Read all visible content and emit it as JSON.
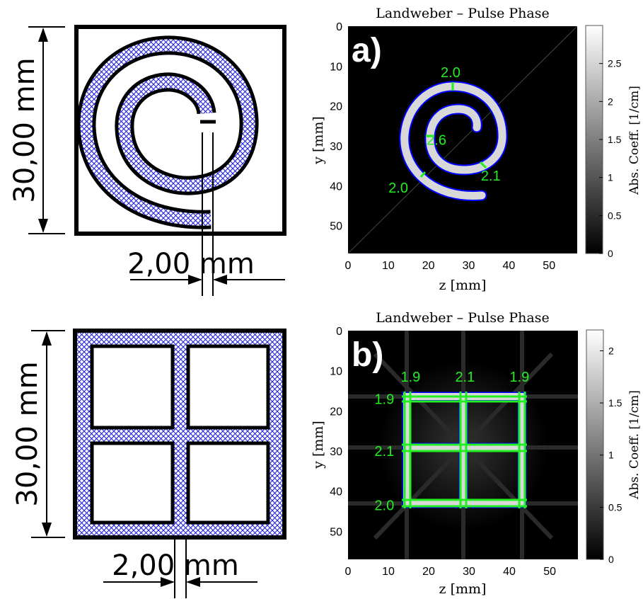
{
  "colors": {
    "hatch": "#2020dd",
    "outline": "#0000ff",
    "measure": "#22ee22",
    "panel_bg": "#000000"
  },
  "drawings": {
    "spiral": {
      "dimension_vertical": "30,00 mm",
      "dimension_gap": "2,00 mm"
    },
    "grid": {
      "dimension_vertical": "30,00 mm",
      "dimension_gap": "2,00 mm"
    }
  },
  "chart_data": [
    {
      "type": "heatmap",
      "title": "Landweber – Pulse Phase",
      "panel_label": "a)",
      "xlabel": "z [mm]",
      "ylabel": "y [mm]",
      "xlim": [
        0,
        57
      ],
      "ylim": [
        57,
        0
      ],
      "xticks": [
        "0",
        "10",
        "20",
        "30",
        "40",
        "50"
      ],
      "yticks": [
        "0",
        "10",
        "20",
        "30",
        "40",
        "50"
      ],
      "colorbar": {
        "label": "Abs. Coeff. [1/cm]",
        "min": 0,
        "max": 3.0,
        "ticks": [
          "0",
          "0.5",
          "1",
          "1.5",
          "2",
          "2.5"
        ]
      },
      "annotations": [
        {
          "text": "2.0",
          "z": 25.5,
          "y": 11.5
        },
        {
          "text": "2.6",
          "z": 22.0,
          "y": 28.5
        },
        {
          "text": "2.1",
          "z": 35.5,
          "y": 37.5
        },
        {
          "text": "2.0",
          "z": 12.5,
          "y": 40.5
        }
      ]
    },
    {
      "type": "heatmap",
      "title": "Landweber – Pulse Phase",
      "panel_label": "b)",
      "xlabel": "z [mm]",
      "ylabel": "y [mm]",
      "xlim": [
        0,
        57
      ],
      "ylim": [
        57,
        0
      ],
      "xticks": [
        "0",
        "10",
        "20",
        "30",
        "40",
        "50"
      ],
      "yticks": [
        "0",
        "10",
        "20",
        "30",
        "40",
        "50"
      ],
      "colorbar": {
        "label": "Abs. Coeff. [1/cm]",
        "min": 0,
        "max": 2.2,
        "ticks": [
          "0",
          "0.5",
          "1",
          "1.5",
          "2"
        ]
      },
      "annotations": [
        {
          "text": "1.9",
          "z": 15.5,
          "y": 11.5
        },
        {
          "text": "2.1",
          "z": 29.0,
          "y": 11.5
        },
        {
          "text": "1.9",
          "z": 42.5,
          "y": 11.5
        },
        {
          "text": "1.9",
          "z": 9.0,
          "y": 17.0
        },
        {
          "text": "2.1",
          "z": 9.0,
          "y": 30.0
        },
        {
          "text": "2.0",
          "z": 9.0,
          "y": 43.5
        }
      ]
    }
  ]
}
